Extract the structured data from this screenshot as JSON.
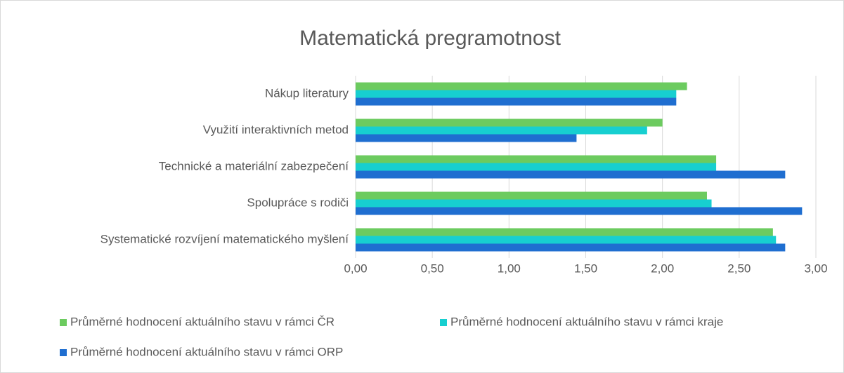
{
  "chart_data": {
    "type": "hbar",
    "title": "Matematická pregramotnost",
    "categories": [
      "Nákup literatury",
      "Využití interaktivních metod",
      "Technické a materiální zabezpečení",
      "Spolupráce s rodiči",
      "Systematické rozvíjení matematického myšlení"
    ],
    "series": [
      {
        "name": "Průměrné hodnocení aktuálního stavu  v rámci ČR",
        "color": "#6ccb5f",
        "values": [
          2.16,
          2.0,
          2.35,
          2.29,
          2.72
        ]
      },
      {
        "name": "Průměrné hodnocení aktuálního stavu  v rámci kraje",
        "color": "#17cfd0",
        "values": [
          2.09,
          1.9,
          2.35,
          2.32,
          2.74
        ]
      },
      {
        "name": "Průměrné hodnocení aktuálního stavu  v rámci ORP",
        "color": "#1f6ed0",
        "values": [
          2.09,
          1.44,
          2.8,
          2.91,
          2.8
        ]
      }
    ],
    "xlim": [
      0,
      3
    ],
    "xticks": [
      {
        "value": 0,
        "label": "0,00"
      },
      {
        "value": 0.5,
        "label": "0,50"
      },
      {
        "value": 1,
        "label": "1,00"
      },
      {
        "value": 1.5,
        "label": "1,50"
      },
      {
        "value": 2,
        "label": "2,00"
      },
      {
        "value": 2.5,
        "label": "2,50"
      },
      {
        "value": 3,
        "label": "3,00"
      }
    ],
    "grid": true,
    "legend": "bottom"
  }
}
